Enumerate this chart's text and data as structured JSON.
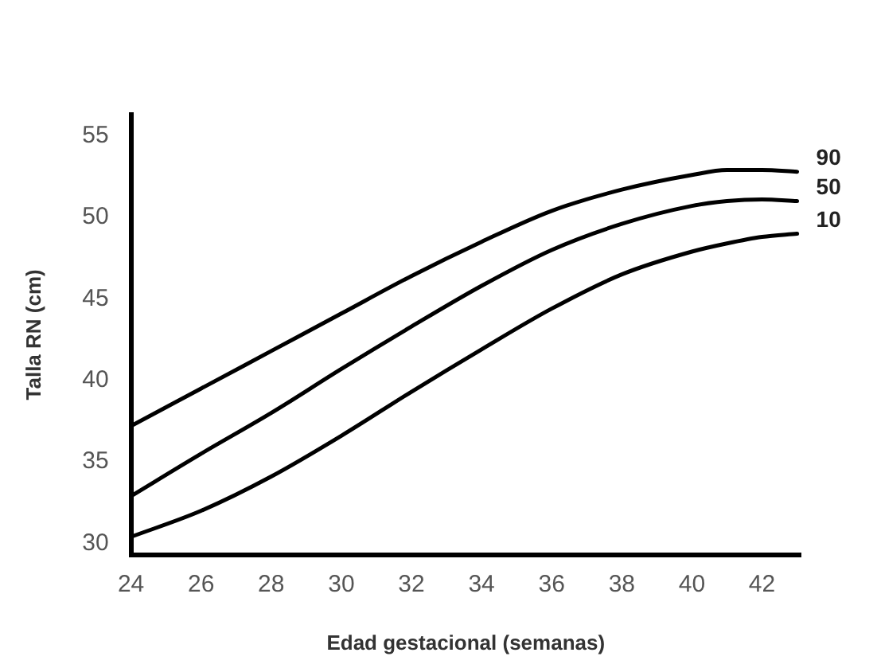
{
  "chart_data": {
    "type": "line",
    "xlabel": "Edad gestacional (semanas)",
    "ylabel": "Talla RN (cm)",
    "x": [
      24,
      26,
      28,
      30,
      32,
      34,
      36,
      38,
      40,
      41,
      42,
      43
    ],
    "series": [
      {
        "name": "90",
        "color": "#000000",
        "values": [
          37.2,
          39.5,
          41.8,
          44.1,
          46.4,
          48.5,
          50.4,
          51.7,
          52.6,
          52.9,
          52.9,
          52.8
        ]
      },
      {
        "name": "50",
        "color": "#000000",
        "values": [
          32.9,
          35.5,
          38.0,
          40.7,
          43.3,
          45.8,
          48.0,
          49.6,
          50.7,
          51.0,
          51.1,
          51.0
        ]
      },
      {
        "name": "10",
        "color": "#000000",
        "values": [
          30.4,
          32.0,
          34.1,
          36.6,
          39.3,
          41.9,
          44.4,
          46.5,
          47.9,
          48.4,
          48.8,
          49.0
        ]
      }
    ],
    "xlim": [
      24,
      43.1
    ],
    "ylim": [
      29.3,
      56.3
    ],
    "xticks": [
      24,
      26,
      28,
      30,
      32,
      34,
      36,
      38,
      40,
      42
    ],
    "yticks": [
      30,
      35,
      40,
      45,
      50,
      55
    ],
    "grid": false,
    "legend": false,
    "marker": "none",
    "line_style": "solid"
  }
}
